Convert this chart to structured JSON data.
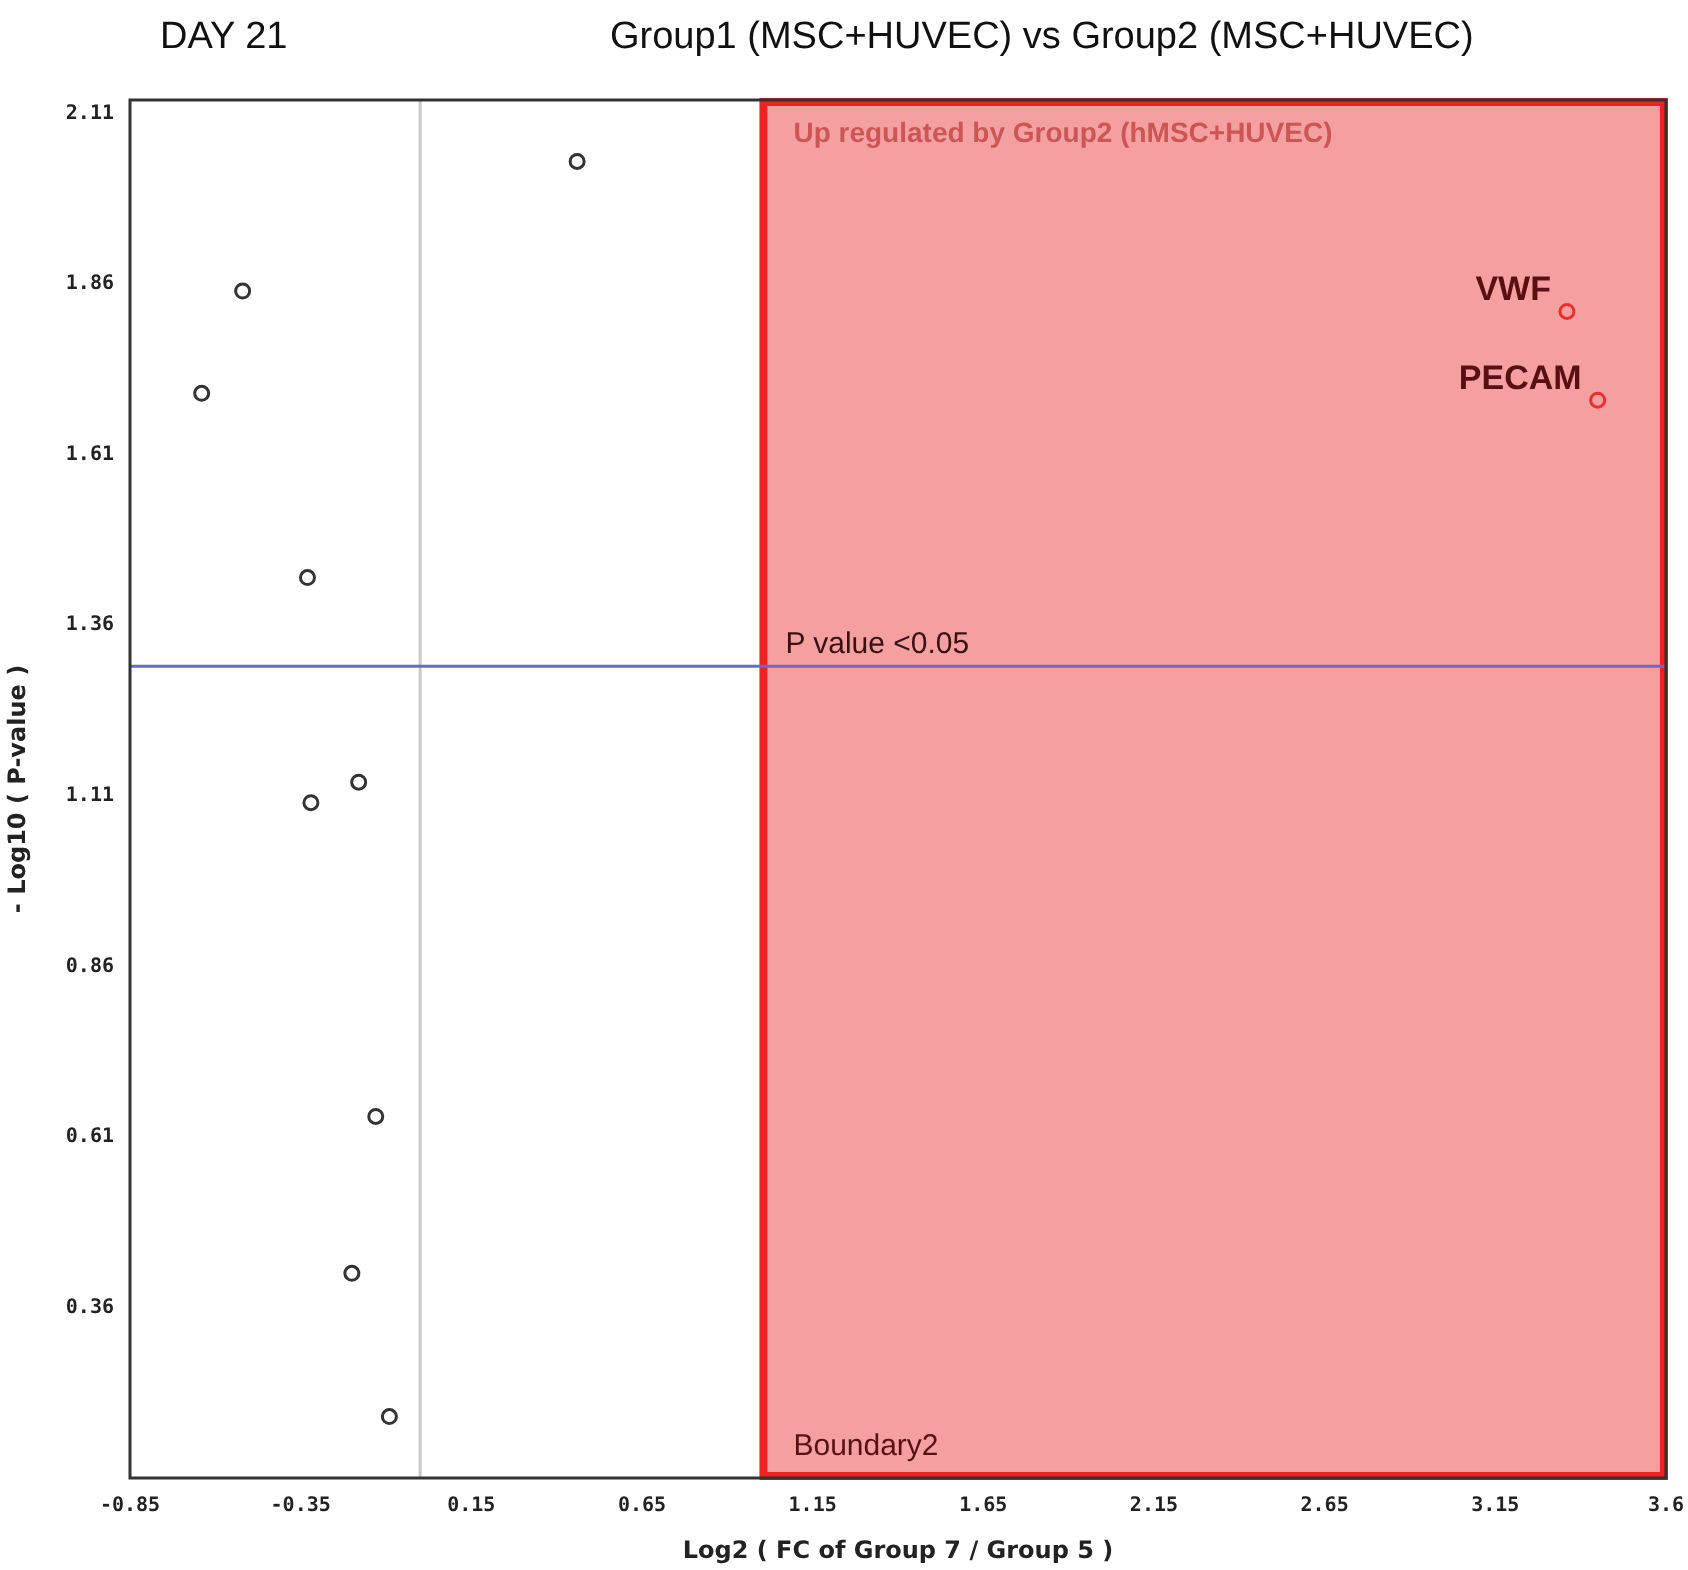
{
  "chart_data": {
    "type": "scatter",
    "title": "Group1 (MSC+HUVEC) vs Group2 (MSC+HUVEC)",
    "subtitle": "DAY 21",
    "xlabel": "Log2 ( FC of Group 7 / Group 5 )",
    "ylabel": "- Log10 ( P-value )",
    "series": [
      {
        "color": "#333333",
        "x": [
          0.46,
          -0.52,
          -0.64,
          -0.33,
          -0.18,
          -0.32,
          -0.13,
          -0.2,
          -0.09
        ],
        "values": [
          2.04,
          1.85,
          1.7,
          1.43,
          1.13,
          1.1,
          0.64,
          0.41,
          0.2
        ]
      },
      {
        "color": "#e83030",
        "x": [
          3.36,
          3.45
        ],
        "values": [
          1.82,
          1.69
        ]
      }
    ],
    "xlim": [
      -0.85,
      3.65
    ],
    "xticks": [
      -0.85,
      -0.35,
      0.15,
      0.65,
      1.15,
      1.65,
      2.15,
      2.65,
      3.15,
      {
        "value": 3.65,
        "label": "3.6"
      }
    ],
    "ylim": [
      0.11,
      2.13
    ],
    "yticks": [
      0.36,
      0.61,
      0.86,
      1.11,
      1.36,
      1.61,
      1.86,
      2.11
    ],
    "ref_lines": [
      {
        "axis": "x",
        "value": 0,
        "color": "#c8c8c8"
      },
      {
        "axis": "y",
        "value": 1.3,
        "label": "P value <0.05",
        "color": "#6a6ac8"
      }
    ],
    "bands": [
      {
        "axis": "x",
        "from": 1,
        "to": 3.65,
        "label": "Up regulated by Group2 (hMSC+HUVEC)",
        "color": "#f4a0a1"
      }
    ],
    "annotations": [
      {
        "text": "VWF",
        "x": 3.36,
        "y": 1.82
      },
      {
        "text": "PECAM",
        "x": 3.45,
        "y": 1.69
      },
      "Boundary2"
    ],
    "grid": false,
    "legend": false,
    "marker": "circle"
  }
}
